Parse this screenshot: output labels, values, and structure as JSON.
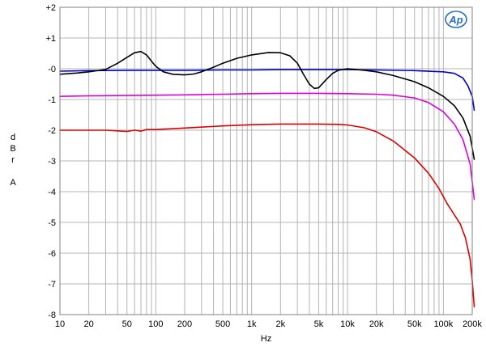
{
  "chart_data": {
    "type": "line",
    "title": "",
    "xlabel": "Hz",
    "ylabel": [
      "d",
      "B",
      "r",
      "",
      "A"
    ],
    "x_scale": "log",
    "xlim": [
      10,
      200000
    ],
    "ylim": [
      -8,
      2
    ],
    "grid": true,
    "logo": "Ap",
    "x_ticks": [
      {
        "v": 10,
        "label": "10"
      },
      {
        "v": 20,
        "label": "20"
      },
      {
        "v": 50,
        "label": "50"
      },
      {
        "v": 100,
        "label": "100"
      },
      {
        "v": 200,
        "label": "200"
      },
      {
        "v": 500,
        "label": "500"
      },
      {
        "v": 1000,
        "label": "1k"
      },
      {
        "v": 2000,
        "label": "2k"
      },
      {
        "v": 5000,
        "label": "5k"
      },
      {
        "v": 10000,
        "label": "10k"
      },
      {
        "v": 20000,
        "label": "20k"
      },
      {
        "v": 50000,
        "label": "50k"
      },
      {
        "v": 100000,
        "label": "100k"
      },
      {
        "v": 200000,
        "label": "200k"
      }
    ],
    "y_ticks": [
      {
        "v": 2,
        "label": "+2"
      },
      {
        "v": 1,
        "label": "+1"
      },
      {
        "v": 0,
        "label": "-0"
      },
      {
        "v": -1,
        "label": "-1"
      },
      {
        "v": -2,
        "label": "-2"
      },
      {
        "v": -3,
        "label": "-3"
      },
      {
        "v": -4,
        "label": "-4"
      },
      {
        "v": -5,
        "label": "-5"
      },
      {
        "v": -6,
        "label": "-6"
      },
      {
        "v": -7,
        "label": "-7"
      },
      {
        "v": -8,
        "label": "-8"
      }
    ],
    "series": [
      {
        "color": "#0000cc",
        "points": [
          [
            10,
            -0.08
          ],
          [
            20,
            -0.06
          ],
          [
            50,
            -0.05
          ],
          [
            100,
            -0.05
          ],
          [
            200,
            -0.05
          ],
          [
            500,
            -0.04
          ],
          [
            1000,
            -0.04
          ],
          [
            2000,
            -0.03
          ],
          [
            5000,
            -0.03
          ],
          [
            10000,
            -0.03
          ],
          [
            20000,
            -0.04
          ],
          [
            50000,
            -0.06
          ],
          [
            100000,
            -0.1
          ],
          [
            130000,
            -0.15
          ],
          [
            160000,
            -0.3
          ],
          [
            180000,
            -0.55
          ],
          [
            200000,
            -0.9
          ],
          [
            210000,
            -1.35
          ]
        ]
      },
      {
        "color": "#000000",
        "points": [
          [
            10,
            -0.18
          ],
          [
            15,
            -0.14
          ],
          [
            20,
            -0.1
          ],
          [
            30,
            -0.02
          ],
          [
            40,
            0.18
          ],
          [
            50,
            0.37
          ],
          [
            60,
            0.52
          ],
          [
            70,
            0.56
          ],
          [
            80,
            0.45
          ],
          [
            90,
            0.25
          ],
          [
            100,
            0.08
          ],
          [
            120,
            -0.1
          ],
          [
            150,
            -0.18
          ],
          [
            200,
            -0.2
          ],
          [
            250,
            -0.17
          ],
          [
            300,
            -0.1
          ],
          [
            400,
            0.05
          ],
          [
            500,
            0.18
          ],
          [
            700,
            0.34
          ],
          [
            1000,
            0.45
          ],
          [
            1500,
            0.53
          ],
          [
            2000,
            0.52
          ],
          [
            2500,
            0.42
          ],
          [
            3000,
            0.18
          ],
          [
            3500,
            -0.2
          ],
          [
            4000,
            -0.5
          ],
          [
            4500,
            -0.64
          ],
          [
            5000,
            -0.62
          ],
          [
            6000,
            -0.35
          ],
          [
            7000,
            -0.15
          ],
          [
            8000,
            -0.05
          ],
          [
            10000,
            0.0
          ],
          [
            12000,
            -0.02
          ],
          [
            15000,
            -0.05
          ],
          [
            20000,
            -0.1
          ],
          [
            30000,
            -0.22
          ],
          [
            50000,
            -0.42
          ],
          [
            70000,
            -0.62
          ],
          [
            100000,
            -0.9
          ],
          [
            130000,
            -1.2
          ],
          [
            160000,
            -1.6
          ],
          [
            190000,
            -2.2
          ],
          [
            210000,
            -2.95
          ]
        ]
      },
      {
        "color": "#dd00dd",
        "points": [
          [
            10,
            -0.9
          ],
          [
            20,
            -0.88
          ],
          [
            50,
            -0.87
          ],
          [
            100,
            -0.86
          ],
          [
            200,
            -0.85
          ],
          [
            500,
            -0.83
          ],
          [
            1000,
            -0.81
          ],
          [
            2000,
            -0.8
          ],
          [
            5000,
            -0.8
          ],
          [
            10000,
            -0.81
          ],
          [
            20000,
            -0.83
          ],
          [
            30000,
            -0.86
          ],
          [
            50000,
            -0.95
          ],
          [
            70000,
            -1.1
          ],
          [
            100000,
            -1.4
          ],
          [
            130000,
            -1.8
          ],
          [
            160000,
            -2.3
          ],
          [
            190000,
            -3.1
          ],
          [
            210000,
            -4.25
          ]
        ]
      },
      {
        "color": "#dd0000",
        "points": [
          [
            10,
            -2.0
          ],
          [
            15,
            -2.0
          ],
          [
            20,
            -2.0
          ],
          [
            30,
            -2.0
          ],
          [
            40,
            -2.02
          ],
          [
            50,
            -2.04
          ],
          [
            60,
            -2.0
          ],
          [
            70,
            -2.03
          ],
          [
            80,
            -1.98
          ],
          [
            100,
            -1.98
          ],
          [
            200,
            -1.93
          ],
          [
            500,
            -1.86
          ],
          [
            1000,
            -1.82
          ],
          [
            2000,
            -1.8
          ],
          [
            5000,
            -1.8
          ],
          [
            8000,
            -1.81
          ],
          [
            10000,
            -1.83
          ],
          [
            15000,
            -1.92
          ],
          [
            20000,
            -2.05
          ],
          [
            30000,
            -2.35
          ],
          [
            50000,
            -2.9
          ],
          [
            70000,
            -3.4
          ],
          [
            90000,
            -3.9
          ],
          [
            110000,
            -4.4
          ],
          [
            130000,
            -4.75
          ],
          [
            150000,
            -5.05
          ],
          [
            170000,
            -5.5
          ],
          [
            190000,
            -6.2
          ],
          [
            200000,
            -6.9
          ],
          [
            210000,
            -7.75
          ]
        ]
      }
    ]
  }
}
